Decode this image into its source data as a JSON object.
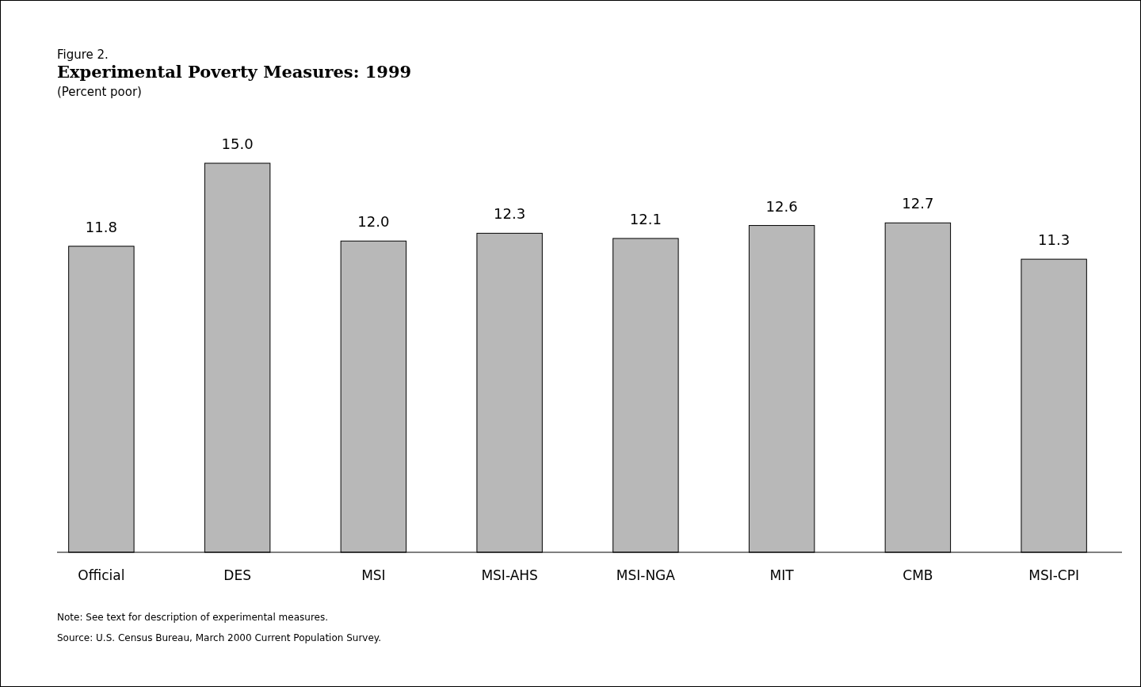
{
  "chart_data": {
    "type": "bar",
    "title": "Experimental Poverty Measures: 1999",
    "subtitle": "(Percent poor)",
    "annotations": [
      "Figure 2.",
      "Note: See text for description of experimental measures.",
      "Source: U.S. Census Bureau, March 2000 Current Population Survey."
    ],
    "categories": [
      "Official",
      "DES",
      "MSI",
      "MSI-AHS",
      "MSI-NGA",
      "MIT",
      "CMB",
      "MSI-CPI"
    ],
    "values": [
      11.8,
      15.0,
      12.0,
      12.3,
      12.1,
      12.6,
      12.7,
      11.3
    ],
    "value_labels": [
      "11.8",
      "15.0",
      "12.0",
      "12.3",
      "12.1",
      "12.6",
      "12.7",
      "11.3"
    ],
    "color": "#b8b8b8"
  }
}
